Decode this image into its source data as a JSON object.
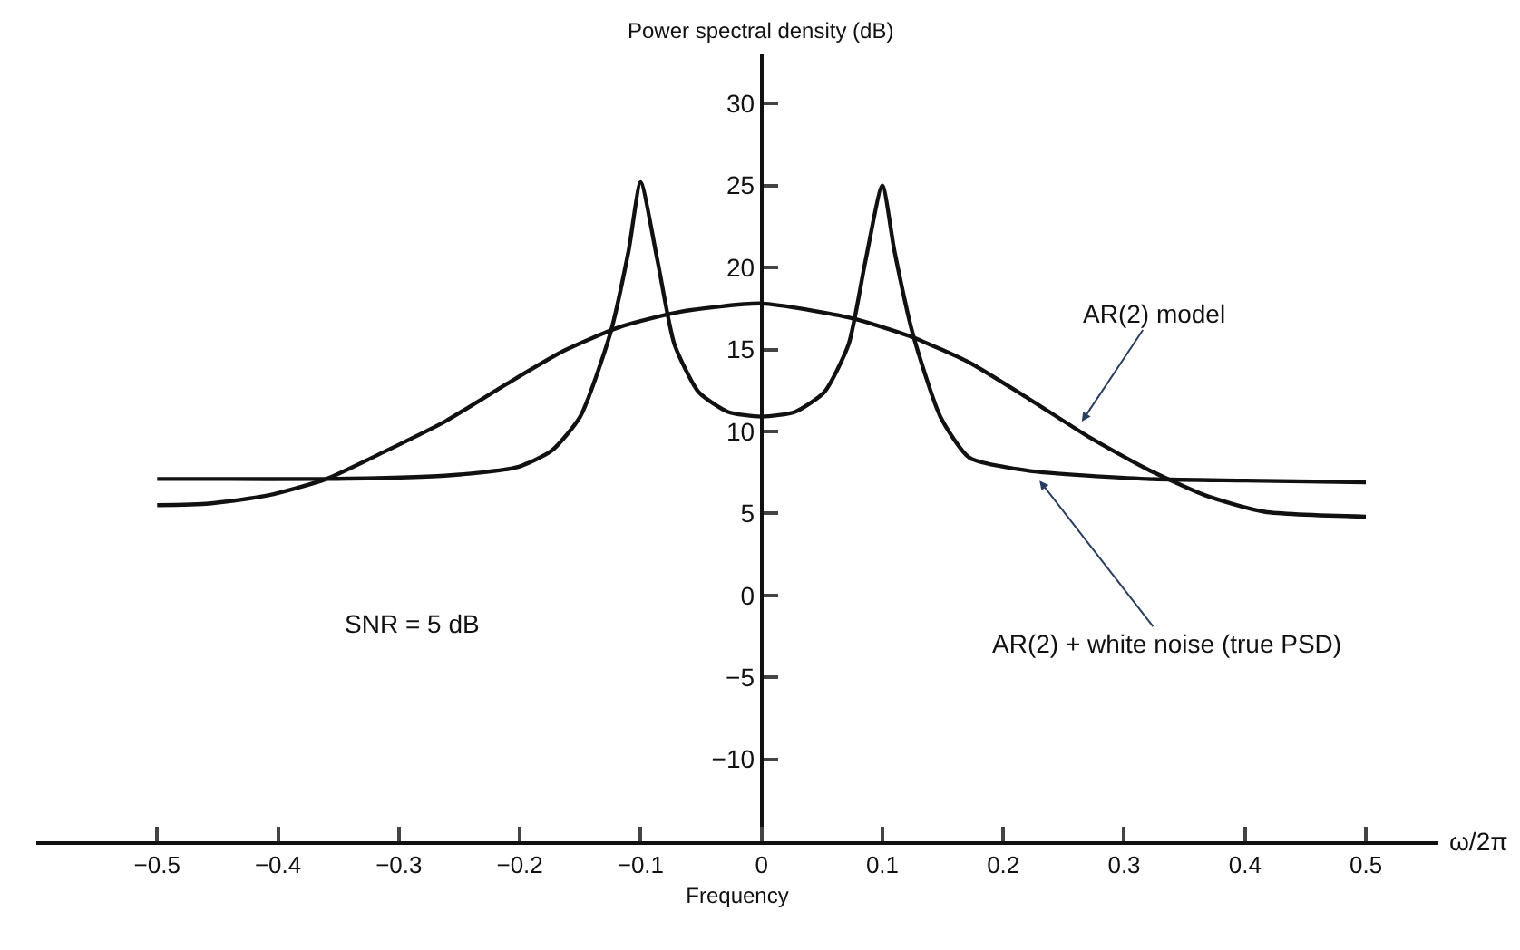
{
  "chart_data": {
    "type": "line",
    "xlabel": "Frequency",
    "ylabel": "Power spectral density (dB)",
    "series": [
      {
        "color": "#111111",
        "x": [
          -0.5,
          -0.457,
          -0.36,
          -0.262,
          -0.203,
          -0.174,
          -0.15,
          -0.125,
          -0.11,
          -0.1,
          -0.086,
          -0.072,
          -0.052,
          -0.028,
          0,
          0.028,
          0.052,
          0.072,
          0.086,
          0.1,
          0.11,
          0.125,
          0.148,
          0.172,
          0.221,
          0.319,
          0.4,
          0.5
        ],
        "values": [
          7.1,
          7.1,
          7.1,
          7.3,
          7.8,
          8.8,
          10.9,
          16,
          21,
          25.2,
          20.4,
          15.3,
          12.4,
          11.2,
          10.9,
          11.2,
          12.4,
          15.3,
          20.4,
          25,
          21,
          16,
          10.9,
          8.4,
          7.6,
          7.1,
          7.0,
          6.9
        ]
      },
      {
        "color": "#111111",
        "x": [
          -0.5,
          -0.457,
          -0.408,
          -0.36,
          -0.311,
          -0.262,
          -0.213,
          -0.164,
          -0.116,
          -0.067,
          0,
          0.075,
          0.123,
          0.172,
          0.221,
          0.27,
          0.319,
          0.367,
          0.416,
          0.5
        ],
        "values": [
          5.5,
          5.6,
          6.1,
          7.1,
          8.8,
          10.6,
          12.8,
          14.9,
          16.4,
          17.3,
          17.8,
          16.9,
          15.8,
          14.2,
          12.0,
          9.7,
          7.7,
          6.1,
          5.1,
          4.8
        ]
      }
    ],
    "xlim": [
      -0.6,
      0.56
    ],
    "ylim": [
      -15,
      33
    ],
    "xticks": [
      -0.5,
      -0.4,
      -0.3,
      -0.2,
      -0.1,
      0,
      0.1,
      0.2,
      0.3,
      0.4,
      0.5
    ],
    "yticks": [
      -10,
      -5,
      0,
      5,
      10,
      15,
      20,
      25,
      30
    ],
    "annotations": [
      {
        "text": "AR(2) model",
        "x": 0.265,
        "y": 10.6
      },
      {
        "text": "AR(2) + white noise (true PSD)",
        "x": 0.23,
        "y": 7.0
      },
      "SNR = 5 dB",
      "ω/2π"
    ],
    "marker": "none",
    "line_style": "solid"
  }
}
